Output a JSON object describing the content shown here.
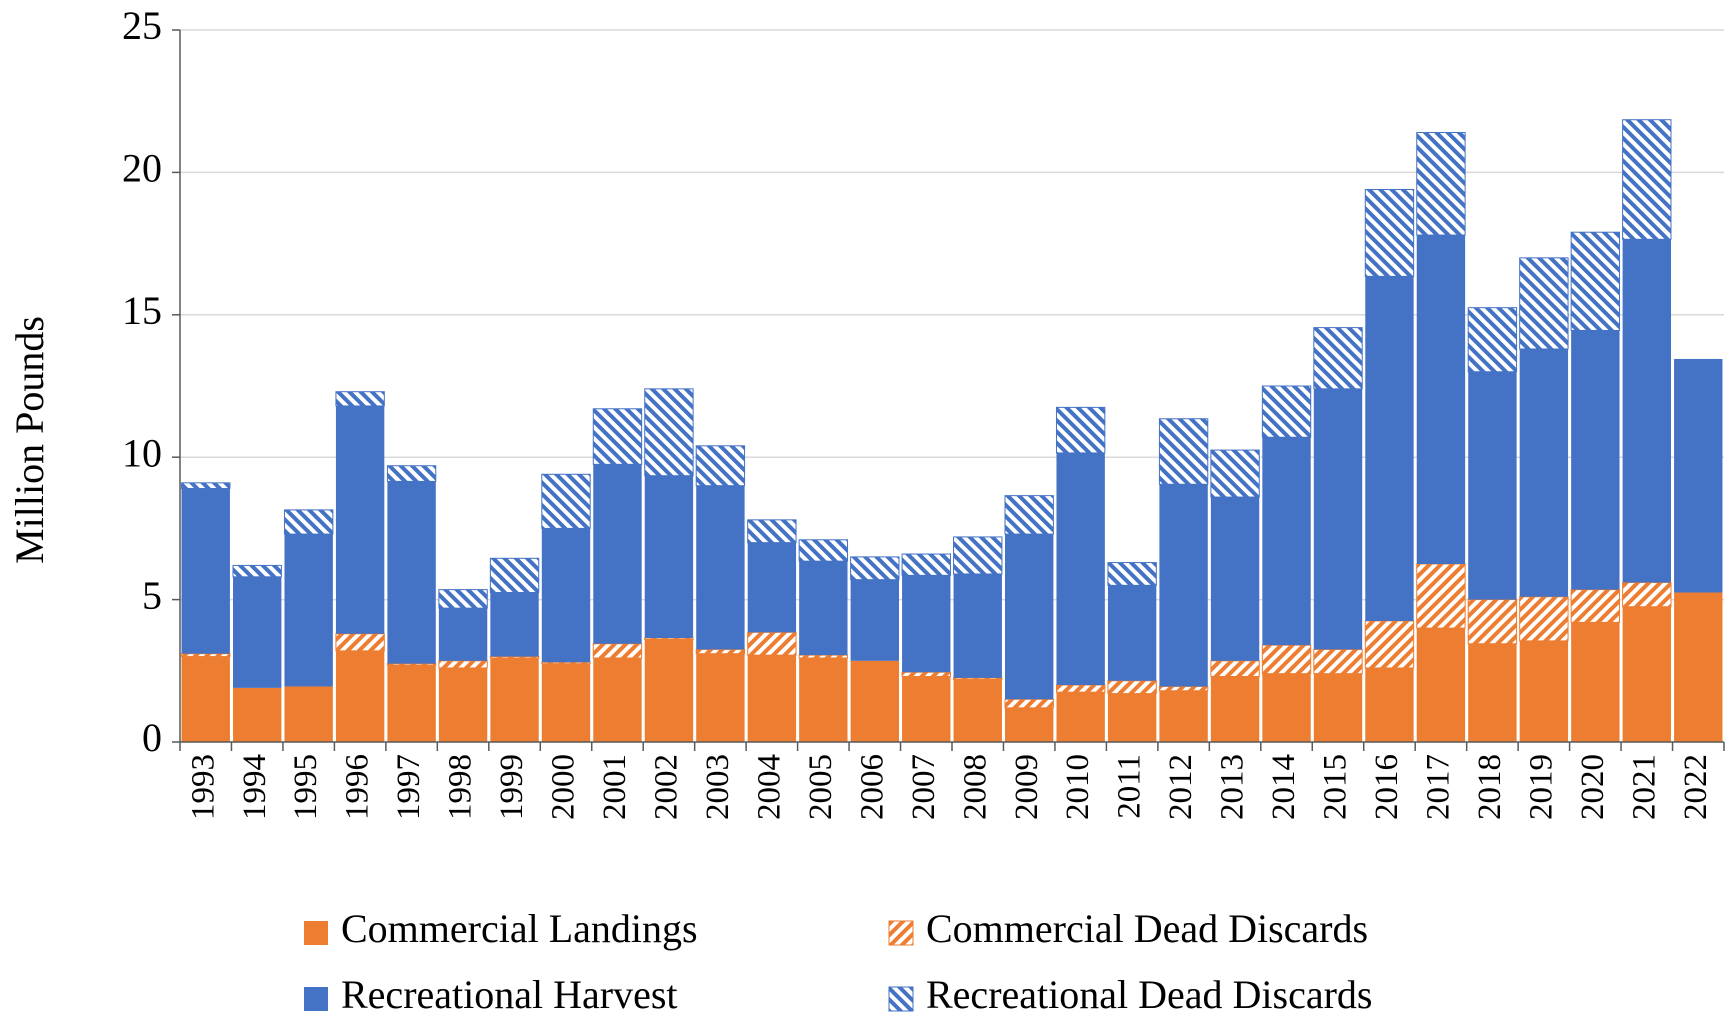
{
  "chart_data": {
    "type": "stacked_bar",
    "y_label": "Million Pounds",
    "categories": [
      "1993",
      "1994",
      "1995",
      "1996",
      "1997",
      "1998",
      "1999",
      "2000",
      "2001",
      "2002",
      "2003",
      "2004",
      "2005",
      "2006",
      "2007",
      "2008",
      "2009",
      "2010",
      "2011",
      "2012",
      "2013",
      "2014",
      "2015",
      "2016",
      "2017",
      "2018",
      "2019",
      "2020",
      "2021",
      "2022"
    ],
    "series": [
      {
        "name": "Commercial Landings",
        "color": "#ed7d31",
        "pattern": "solid",
        "values": [
          3.0,
          1.9,
          1.95,
          3.2,
          2.7,
          2.6,
          2.95,
          2.75,
          2.95,
          3.6,
          3.1,
          3.05,
          2.95,
          2.85,
          2.3,
          2.2,
          1.2,
          1.75,
          1.7,
          1.8,
          2.3,
          2.4,
          2.4,
          2.6,
          4.0,
          3.45,
          3.55,
          4.2,
          4.75,
          5.25
        ]
      },
      {
        "name": "Commercial Dead Discards",
        "color": "#ed7d31",
        "pattern": "hatch",
        "values": [
          0.1,
          0,
          0,
          0.6,
          0.05,
          0.25,
          0.05,
          0.05,
          0.5,
          0.05,
          0.15,
          0.8,
          0.1,
          0,
          0.15,
          0.05,
          0.3,
          0.25,
          0.45,
          0.15,
          0.55,
          1.0,
          0.85,
          1.65,
          2.25,
          1.55,
          1.55,
          1.15,
          0.85,
          0
        ]
      },
      {
        "name": "Recreational Harvest",
        "color": "#4472c4",
        "pattern": "solid",
        "values": [
          5.8,
          3.9,
          5.35,
          8.0,
          6.4,
          1.85,
          2.25,
          4.7,
          6.3,
          5.7,
          5.75,
          3.15,
          3.3,
          2.85,
          3.4,
          3.65,
          5.8,
          8.15,
          3.35,
          7.1,
          5.75,
          7.3,
          9.15,
          12.1,
          11.55,
          8.0,
          8.7,
          9.1,
          12.05,
          8.2
        ]
      },
      {
        "name": "Recreational Dead Discards",
        "color": "#4472c4",
        "pattern": "hatch",
        "values": [
          0.2,
          0.4,
          0.85,
          0.5,
          0.55,
          0.65,
          1.2,
          1.9,
          1.95,
          3.05,
          1.4,
          0.8,
          0.75,
          0.8,
          0.75,
          1.3,
          1.35,
          1.6,
          0.8,
          2.3,
          1.65,
          1.8,
          2.15,
          3.05,
          3.6,
          2.25,
          3.2,
          3.45,
          4.2,
          0
        ]
      }
    ],
    "ylim": [
      0,
      25
    ],
    "yticks": [
      0,
      5,
      10,
      15,
      20,
      25
    ],
    "grid": true,
    "legend": "bottom"
  }
}
